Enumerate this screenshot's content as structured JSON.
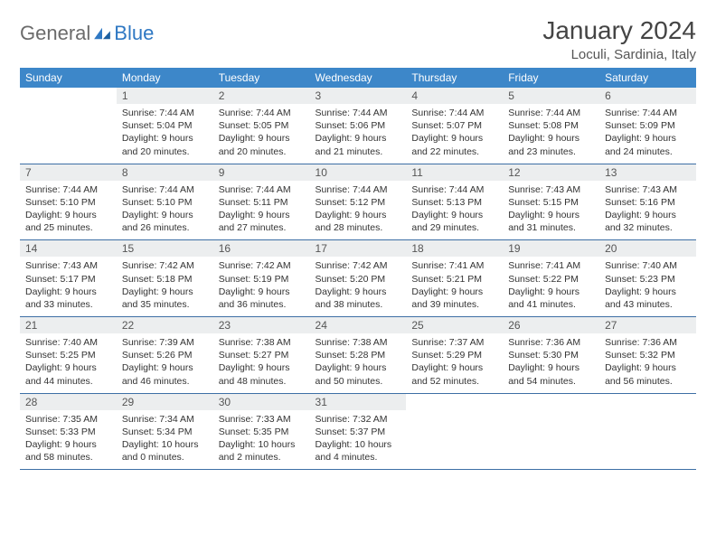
{
  "logo": {
    "general": "General",
    "blue": "Blue"
  },
  "title": "January 2024",
  "location": "Loculi, Sardinia, Italy",
  "colors": {
    "header_bg": "#3d87c9",
    "header_text": "#ffffff",
    "daynum_bg": "#eceeef",
    "row_divider": "#3d6fa5",
    "logo_gray": "#6b6b6b",
    "logo_blue": "#2f78c3",
    "title_color": "#444444",
    "body_text": "#333333"
  },
  "weekdays": [
    "Sunday",
    "Monday",
    "Tuesday",
    "Wednesday",
    "Thursday",
    "Friday",
    "Saturday"
  ],
  "weeks": [
    [
      {
        "n": "",
        "lines": []
      },
      {
        "n": "1",
        "lines": [
          "Sunrise: 7:44 AM",
          "Sunset: 5:04 PM",
          "Daylight: 9 hours",
          "and 20 minutes."
        ]
      },
      {
        "n": "2",
        "lines": [
          "Sunrise: 7:44 AM",
          "Sunset: 5:05 PM",
          "Daylight: 9 hours",
          "and 20 minutes."
        ]
      },
      {
        "n": "3",
        "lines": [
          "Sunrise: 7:44 AM",
          "Sunset: 5:06 PM",
          "Daylight: 9 hours",
          "and 21 minutes."
        ]
      },
      {
        "n": "4",
        "lines": [
          "Sunrise: 7:44 AM",
          "Sunset: 5:07 PM",
          "Daylight: 9 hours",
          "and 22 minutes."
        ]
      },
      {
        "n": "5",
        "lines": [
          "Sunrise: 7:44 AM",
          "Sunset: 5:08 PM",
          "Daylight: 9 hours",
          "and 23 minutes."
        ]
      },
      {
        "n": "6",
        "lines": [
          "Sunrise: 7:44 AM",
          "Sunset: 5:09 PM",
          "Daylight: 9 hours",
          "and 24 minutes."
        ]
      }
    ],
    [
      {
        "n": "7",
        "lines": [
          "Sunrise: 7:44 AM",
          "Sunset: 5:10 PM",
          "Daylight: 9 hours",
          "and 25 minutes."
        ]
      },
      {
        "n": "8",
        "lines": [
          "Sunrise: 7:44 AM",
          "Sunset: 5:10 PM",
          "Daylight: 9 hours",
          "and 26 minutes."
        ]
      },
      {
        "n": "9",
        "lines": [
          "Sunrise: 7:44 AM",
          "Sunset: 5:11 PM",
          "Daylight: 9 hours",
          "and 27 minutes."
        ]
      },
      {
        "n": "10",
        "lines": [
          "Sunrise: 7:44 AM",
          "Sunset: 5:12 PM",
          "Daylight: 9 hours",
          "and 28 minutes."
        ]
      },
      {
        "n": "11",
        "lines": [
          "Sunrise: 7:44 AM",
          "Sunset: 5:13 PM",
          "Daylight: 9 hours",
          "and 29 minutes."
        ]
      },
      {
        "n": "12",
        "lines": [
          "Sunrise: 7:43 AM",
          "Sunset: 5:15 PM",
          "Daylight: 9 hours",
          "and 31 minutes."
        ]
      },
      {
        "n": "13",
        "lines": [
          "Sunrise: 7:43 AM",
          "Sunset: 5:16 PM",
          "Daylight: 9 hours",
          "and 32 minutes."
        ]
      }
    ],
    [
      {
        "n": "14",
        "lines": [
          "Sunrise: 7:43 AM",
          "Sunset: 5:17 PM",
          "Daylight: 9 hours",
          "and 33 minutes."
        ]
      },
      {
        "n": "15",
        "lines": [
          "Sunrise: 7:42 AM",
          "Sunset: 5:18 PM",
          "Daylight: 9 hours",
          "and 35 minutes."
        ]
      },
      {
        "n": "16",
        "lines": [
          "Sunrise: 7:42 AM",
          "Sunset: 5:19 PM",
          "Daylight: 9 hours",
          "and 36 minutes."
        ]
      },
      {
        "n": "17",
        "lines": [
          "Sunrise: 7:42 AM",
          "Sunset: 5:20 PM",
          "Daylight: 9 hours",
          "and 38 minutes."
        ]
      },
      {
        "n": "18",
        "lines": [
          "Sunrise: 7:41 AM",
          "Sunset: 5:21 PM",
          "Daylight: 9 hours",
          "and 39 minutes."
        ]
      },
      {
        "n": "19",
        "lines": [
          "Sunrise: 7:41 AM",
          "Sunset: 5:22 PM",
          "Daylight: 9 hours",
          "and 41 minutes."
        ]
      },
      {
        "n": "20",
        "lines": [
          "Sunrise: 7:40 AM",
          "Sunset: 5:23 PM",
          "Daylight: 9 hours",
          "and 43 minutes."
        ]
      }
    ],
    [
      {
        "n": "21",
        "lines": [
          "Sunrise: 7:40 AM",
          "Sunset: 5:25 PM",
          "Daylight: 9 hours",
          "and 44 minutes."
        ]
      },
      {
        "n": "22",
        "lines": [
          "Sunrise: 7:39 AM",
          "Sunset: 5:26 PM",
          "Daylight: 9 hours",
          "and 46 minutes."
        ]
      },
      {
        "n": "23",
        "lines": [
          "Sunrise: 7:38 AM",
          "Sunset: 5:27 PM",
          "Daylight: 9 hours",
          "and 48 minutes."
        ]
      },
      {
        "n": "24",
        "lines": [
          "Sunrise: 7:38 AM",
          "Sunset: 5:28 PM",
          "Daylight: 9 hours",
          "and 50 minutes."
        ]
      },
      {
        "n": "25",
        "lines": [
          "Sunrise: 7:37 AM",
          "Sunset: 5:29 PM",
          "Daylight: 9 hours",
          "and 52 minutes."
        ]
      },
      {
        "n": "26",
        "lines": [
          "Sunrise: 7:36 AM",
          "Sunset: 5:30 PM",
          "Daylight: 9 hours",
          "and 54 minutes."
        ]
      },
      {
        "n": "27",
        "lines": [
          "Sunrise: 7:36 AM",
          "Sunset: 5:32 PM",
          "Daylight: 9 hours",
          "and 56 minutes."
        ]
      }
    ],
    [
      {
        "n": "28",
        "lines": [
          "Sunrise: 7:35 AM",
          "Sunset: 5:33 PM",
          "Daylight: 9 hours",
          "and 58 minutes."
        ]
      },
      {
        "n": "29",
        "lines": [
          "Sunrise: 7:34 AM",
          "Sunset: 5:34 PM",
          "Daylight: 10 hours",
          "and 0 minutes."
        ]
      },
      {
        "n": "30",
        "lines": [
          "Sunrise: 7:33 AM",
          "Sunset: 5:35 PM",
          "Daylight: 10 hours",
          "and 2 minutes."
        ]
      },
      {
        "n": "31",
        "lines": [
          "Sunrise: 7:32 AM",
          "Sunset: 5:37 PM",
          "Daylight: 10 hours",
          "and 4 minutes."
        ]
      },
      {
        "n": "",
        "lines": []
      },
      {
        "n": "",
        "lines": []
      },
      {
        "n": "",
        "lines": []
      }
    ]
  ]
}
